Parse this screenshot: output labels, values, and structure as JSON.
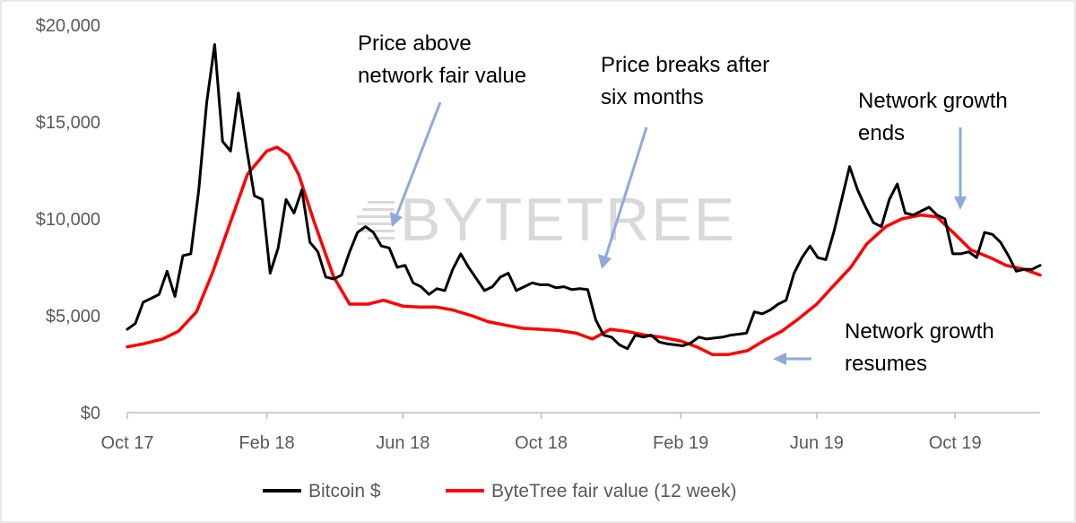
{
  "chart_data": {
    "type": "line",
    "title": "",
    "xlabel": "",
    "ylabel": "",
    "ylim": [
      0,
      20000
    ],
    "yticks": [
      {
        "value": 0,
        "label": "$0"
      },
      {
        "value": 5000,
        "label": "$5,000"
      },
      {
        "value": 10000,
        "label": "$10,000"
      },
      {
        "value": 15000,
        "label": "$15,000"
      },
      {
        "value": 20000,
        "label": "$20,000"
      }
    ],
    "xlim": [
      "2017-10-01",
      "2019-12-15"
    ],
    "xticks": [
      {
        "date": "2017-10-01",
        "label": "Oct 17"
      },
      {
        "date": "2018-02-01",
        "label": "Feb 18"
      },
      {
        "date": "2018-06-01",
        "label": "Jun 18"
      },
      {
        "date": "2018-10-01",
        "label": "Oct 18"
      },
      {
        "date": "2019-02-01",
        "label": "Feb 19"
      },
      {
        "date": "2019-06-01",
        "label": "Jun 19"
      },
      {
        "date": "2019-10-01",
        "label": "Oct 19"
      }
    ],
    "grid": false,
    "legend": "bottom",
    "watermark": "BYTETREE",
    "series": [
      {
        "name": "Bitcoin $",
        "color": "#000000",
        "points": [
          [
            "2017-10-01",
            4300
          ],
          [
            "2017-10-08",
            4600
          ],
          [
            "2017-10-15",
            5700
          ],
          [
            "2017-10-22",
            5900
          ],
          [
            "2017-10-29",
            6100
          ],
          [
            "2017-11-05",
            7300
          ],
          [
            "2017-11-12",
            6000
          ],
          [
            "2017-11-19",
            8100
          ],
          [
            "2017-11-26",
            8200
          ],
          [
            "2017-12-03",
            11500
          ],
          [
            "2017-12-10",
            16000
          ],
          [
            "2017-12-17",
            19000
          ],
          [
            "2017-12-24",
            14000
          ],
          [
            "2017-12-31",
            13500
          ],
          [
            "2018-01-07",
            16500
          ],
          [
            "2018-01-14",
            13700
          ],
          [
            "2018-01-21",
            11200
          ],
          [
            "2018-01-28",
            11000
          ],
          [
            "2018-02-04",
            7200
          ],
          [
            "2018-02-11",
            8500
          ],
          [
            "2018-02-18",
            11000
          ],
          [
            "2018-02-25",
            10300
          ],
          [
            "2018-03-04",
            11500
          ],
          [
            "2018-03-11",
            8800
          ],
          [
            "2018-03-18",
            8300
          ],
          [
            "2018-03-25",
            7000
          ],
          [
            "2018-04-01",
            6900
          ],
          [
            "2018-04-08",
            7100
          ],
          [
            "2018-04-15",
            8300
          ],
          [
            "2018-04-22",
            9300
          ],
          [
            "2018-04-29",
            9600
          ],
          [
            "2018-05-06",
            9300
          ],
          [
            "2018-05-13",
            8600
          ],
          [
            "2018-05-20",
            8500
          ],
          [
            "2018-05-27",
            7500
          ],
          [
            "2018-06-03",
            7600
          ],
          [
            "2018-06-10",
            6700
          ],
          [
            "2018-06-17",
            6500
          ],
          [
            "2018-06-24",
            6100
          ],
          [
            "2018-07-01",
            6400
          ],
          [
            "2018-07-08",
            6300
          ],
          [
            "2018-07-15",
            7400
          ],
          [
            "2018-07-22",
            8200
          ],
          [
            "2018-07-29",
            7500
          ],
          [
            "2018-08-05",
            6900
          ],
          [
            "2018-08-12",
            6300
          ],
          [
            "2018-08-19",
            6500
          ],
          [
            "2018-08-26",
            7000
          ],
          [
            "2018-09-02",
            7200
          ],
          [
            "2018-09-09",
            6300
          ],
          [
            "2018-09-16",
            6500
          ],
          [
            "2018-09-23",
            6700
          ],
          [
            "2018-09-30",
            6600
          ],
          [
            "2018-10-07",
            6600
          ],
          [
            "2018-10-14",
            6450
          ],
          [
            "2018-10-21",
            6500
          ],
          [
            "2018-10-28",
            6350
          ],
          [
            "2018-11-04",
            6400
          ],
          [
            "2018-11-11",
            6350
          ],
          [
            "2018-11-18",
            4800
          ],
          [
            "2018-11-25",
            4000
          ],
          [
            "2018-12-02",
            3900
          ],
          [
            "2018-12-09",
            3500
          ],
          [
            "2018-12-16",
            3300
          ],
          [
            "2018-12-23",
            4000
          ],
          [
            "2018-12-30",
            3900
          ],
          [
            "2019-01-06",
            4000
          ],
          [
            "2019-01-13",
            3650
          ],
          [
            "2019-01-20",
            3550
          ],
          [
            "2019-01-27",
            3500
          ],
          [
            "2019-02-03",
            3450
          ],
          [
            "2019-02-10",
            3600
          ],
          [
            "2019-02-17",
            3900
          ],
          [
            "2019-02-24",
            3800
          ],
          [
            "2019-03-03",
            3850
          ],
          [
            "2019-03-10",
            3900
          ],
          [
            "2019-03-17",
            4000
          ],
          [
            "2019-03-24",
            4050
          ],
          [
            "2019-03-31",
            4100
          ],
          [
            "2019-04-07",
            5200
          ],
          [
            "2019-04-14",
            5100
          ],
          [
            "2019-04-21",
            5300
          ],
          [
            "2019-04-28",
            5600
          ],
          [
            "2019-05-05",
            5800
          ],
          [
            "2019-05-12",
            7200
          ],
          [
            "2019-05-19",
            8000
          ],
          [
            "2019-05-26",
            8600
          ],
          [
            "2019-06-02",
            8000
          ],
          [
            "2019-06-09",
            7900
          ],
          [
            "2019-06-16",
            9300
          ],
          [
            "2019-06-23",
            11000
          ],
          [
            "2019-06-30",
            12700
          ],
          [
            "2019-07-07",
            11500
          ],
          [
            "2019-07-14",
            10600
          ],
          [
            "2019-07-21",
            9800
          ],
          [
            "2019-07-28",
            9600
          ],
          [
            "2019-08-04",
            11000
          ],
          [
            "2019-08-11",
            11800
          ],
          [
            "2019-08-18",
            10300
          ],
          [
            "2019-08-25",
            10200
          ],
          [
            "2019-09-01",
            10400
          ],
          [
            "2019-09-08",
            10600
          ],
          [
            "2019-09-15",
            10200
          ],
          [
            "2019-09-22",
            10000
          ],
          [
            "2019-09-29",
            8200
          ],
          [
            "2019-10-06",
            8200
          ],
          [
            "2019-10-13",
            8300
          ],
          [
            "2019-10-20",
            8000
          ],
          [
            "2019-10-27",
            9300
          ],
          [
            "2019-11-03",
            9200
          ],
          [
            "2019-11-10",
            8800
          ],
          [
            "2019-11-17",
            8100
          ],
          [
            "2019-11-24",
            7300
          ],
          [
            "2019-12-01",
            7400
          ],
          [
            "2019-12-08",
            7400
          ],
          [
            "2019-12-15",
            7600
          ]
        ]
      },
      {
        "name": "ByteTree fair value (12 week)",
        "color": "#ff0000",
        "points": [
          [
            "2017-10-01",
            3400
          ],
          [
            "2017-10-15",
            3550
          ],
          [
            "2017-11-01",
            3800
          ],
          [
            "2017-11-15",
            4200
          ],
          [
            "2017-12-01",
            5200
          ],
          [
            "2017-12-15",
            7200
          ],
          [
            "2018-01-01",
            10000
          ],
          [
            "2018-01-15",
            12300
          ],
          [
            "2018-02-01",
            13500
          ],
          [
            "2018-02-10",
            13700
          ],
          [
            "2018-02-20",
            13300
          ],
          [
            "2018-03-01",
            12300
          ],
          [
            "2018-03-15",
            9800
          ],
          [
            "2018-04-01",
            7000
          ],
          [
            "2018-04-15",
            5600
          ],
          [
            "2018-05-01",
            5600
          ],
          [
            "2018-05-15",
            5800
          ],
          [
            "2018-06-01",
            5500
          ],
          [
            "2018-06-15",
            5450
          ],
          [
            "2018-07-01",
            5450
          ],
          [
            "2018-07-15",
            5300
          ],
          [
            "2018-08-01",
            5000
          ],
          [
            "2018-08-15",
            4700
          ],
          [
            "2018-09-01",
            4500
          ],
          [
            "2018-09-15",
            4350
          ],
          [
            "2018-10-01",
            4300
          ],
          [
            "2018-10-15",
            4250
          ],
          [
            "2018-11-01",
            4100
          ],
          [
            "2018-11-15",
            3800
          ],
          [
            "2018-12-01",
            4300
          ],
          [
            "2018-12-15",
            4200
          ],
          [
            "2019-01-01",
            4000
          ],
          [
            "2019-01-15",
            3900
          ],
          [
            "2019-02-01",
            3700
          ],
          [
            "2019-02-15",
            3400
          ],
          [
            "2019-03-01",
            3000
          ],
          [
            "2019-03-15",
            3000
          ],
          [
            "2019-04-01",
            3200
          ],
          [
            "2019-04-15",
            3700
          ],
          [
            "2019-05-01",
            4200
          ],
          [
            "2019-05-15",
            4800
          ],
          [
            "2019-06-01",
            5600
          ],
          [
            "2019-06-15",
            6500
          ],
          [
            "2019-07-01",
            7500
          ],
          [
            "2019-07-15",
            8700
          ],
          [
            "2019-08-01",
            9600
          ],
          [
            "2019-08-15",
            10000
          ],
          [
            "2019-09-01",
            10200
          ],
          [
            "2019-09-15",
            10100
          ],
          [
            "2019-10-01",
            9200
          ],
          [
            "2019-10-15",
            8400
          ],
          [
            "2019-11-01",
            8000
          ],
          [
            "2019-11-15",
            7600
          ],
          [
            "2019-12-01",
            7400
          ],
          [
            "2019-12-15",
            7100
          ]
        ]
      }
    ],
    "annotations": [
      {
        "id": "price-above",
        "lines": [
          "Price above",
          "network fair value"
        ]
      },
      {
        "id": "price-breaks",
        "lines": [
          "Price breaks after",
          "six months"
        ]
      },
      {
        "id": "growth-ends",
        "lines": [
          "Network growth",
          "ends"
        ]
      },
      {
        "id": "growth-resumes",
        "lines": [
          "Network growth",
          "resumes"
        ]
      }
    ]
  }
}
